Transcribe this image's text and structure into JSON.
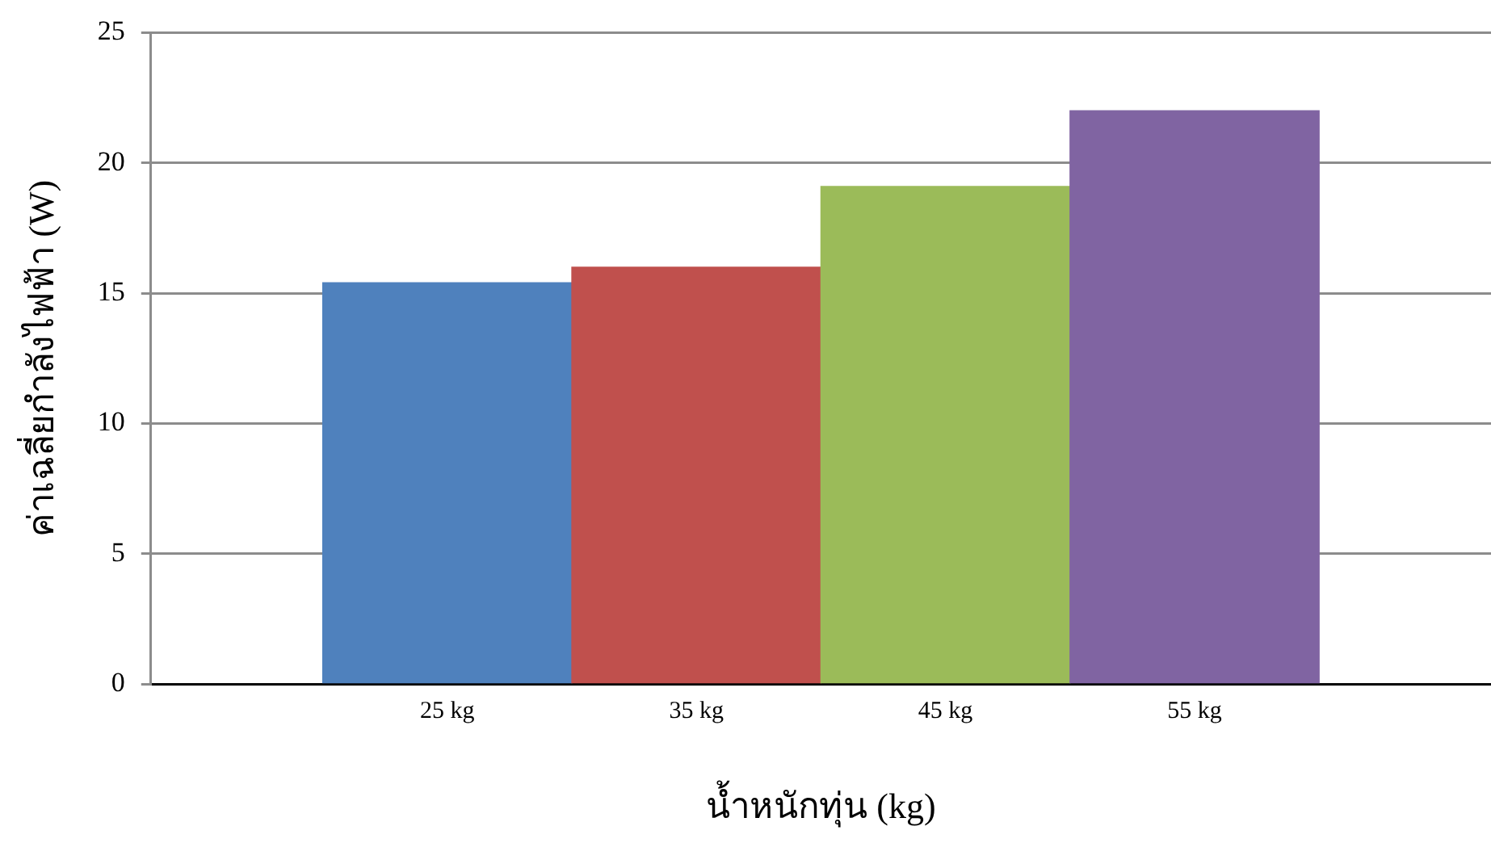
{
  "chart_data": {
    "type": "bar",
    "xlabel": "น้ำหนักทุ่น (kg)",
    "ylabel": "ค่าเฉลี่ยกำลังไฟฟ้า (W)",
    "categories": [
      "25 kg",
      "35 kg",
      "45 kg",
      "55 kg"
    ],
    "values": [
      15.4,
      16.0,
      19.1,
      22.0
    ],
    "colors": [
      "#4f81bd",
      "#c0504d",
      "#9bbb59",
      "#8064a2"
    ],
    "ylim": [
      0,
      25
    ],
    "yticks": [
      0,
      5,
      10,
      15,
      20,
      25
    ],
    "grid": "y",
    "legend": false
  }
}
